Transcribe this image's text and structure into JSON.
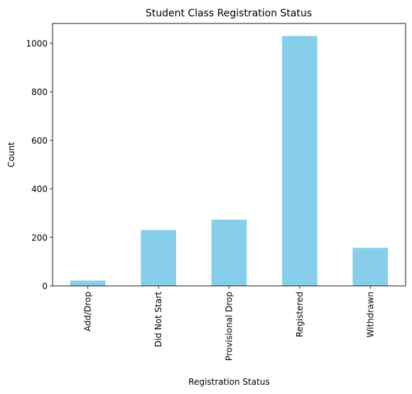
{
  "chart_data": {
    "type": "bar",
    "title": "Student Class Registration Status",
    "xlabel": "Registration Status",
    "ylabel": "Count",
    "categories": [
      "Add/Drop",
      "Did Not Start",
      "Provisional Drop",
      "Registered",
      "Withdrawn"
    ],
    "values": [
      22,
      230,
      273,
      1030,
      157
    ],
    "ylim": [
      0,
      1081.5
    ],
    "yticks": [
      0,
      200,
      400,
      600,
      800,
      1000
    ],
    "bar_color": "#87CEEB",
    "grid": false,
    "legend": "none"
  }
}
